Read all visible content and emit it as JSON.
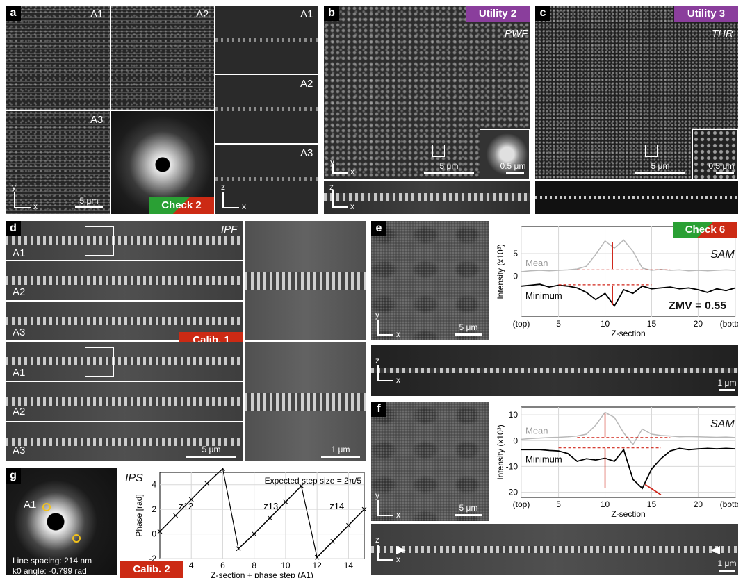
{
  "panel_a": {
    "letter": "a",
    "labels": [
      "A1",
      "A2",
      "A3"
    ],
    "scale": "5 μm",
    "axis_y": "y",
    "axis_x": "x",
    "axis_z": "z",
    "tag": "Check 2",
    "tag_colors": [
      "#2aa034",
      "#cc2a14"
    ]
  },
  "panel_b": {
    "letter": "b",
    "tag": "Utility 2",
    "method": "PWF",
    "scale_main": "5 μm",
    "scale_inset": "0.5 μm",
    "axis_y": "y",
    "axis_x": "x",
    "axis_z": "z"
  },
  "panel_c": {
    "letter": "c",
    "tag": "Utility 3",
    "method": "THR",
    "scale_main": "5 μm",
    "scale_inset": "0.5 μm"
  },
  "panel_d": {
    "letter": "d",
    "method": "IPF",
    "labels": [
      "A1",
      "A2",
      "A3"
    ],
    "tag": "Calib. 1",
    "scale_main": "5 μm",
    "scale_inset": "1 μm"
  },
  "panel_e": {
    "letter": "e",
    "tag": "Check 6",
    "tag_colors": [
      "#2aa034",
      "#cc2a14"
    ],
    "method": "SAM",
    "scale_image": "5 μm",
    "scale_xz": "1 μm",
    "zmv": "ZMV = 0.55",
    "axis_y": "y",
    "axis_x": "x",
    "axis_z": "z"
  },
  "panel_f": {
    "letter": "f",
    "method": "SAM",
    "scale_image": "5 μm",
    "scale_xz": "1 μm",
    "axis_y": "y",
    "axis_x": "x",
    "axis_z": "z"
  },
  "panel_g": {
    "letter": "g",
    "label": "A1",
    "line_spacing": "Line spacing: 214 nm",
    "k0_angle": "k0 angle: -0.799 rad",
    "tag": "Calib. 2",
    "method": "IPS"
  },
  "chart_data": [
    {
      "type": "line",
      "id": "panel-e-chart",
      "xlabel": "Z-section",
      "ylabel": "Intensity (x10³)",
      "x_ticks": [
        "(top)",
        "5",
        "10",
        "15",
        "20",
        "(bottom)"
      ],
      "x_tick_values": [
        1,
        5,
        10,
        15,
        20,
        24
      ],
      "xlim": [
        1,
        24
      ],
      "ylim": [
        -9,
        11
      ],
      "y_ticks": [
        0,
        5
      ],
      "grid": true,
      "x": [
        1,
        2,
        3,
        4,
        5,
        6,
        7,
        8,
        9,
        10,
        11,
        12,
        13,
        14,
        15,
        16,
        17,
        18,
        19,
        20,
        21,
        22,
        23,
        24
      ],
      "series": [
        {
          "name": "Mean",
          "color": "#b8b8b8",
          "values": [
            1.0,
            1.2,
            1.3,
            1.2,
            1.3,
            1.4,
            1.6,
            2.2,
            4.8,
            7.8,
            6.2,
            8.0,
            5.5,
            1.8,
            1.3,
            1.5,
            1.3,
            1.4,
            1.2,
            1.3,
            1.2,
            1.3,
            1.4,
            1.3
          ]
        },
        {
          "name": "Minimum",
          "color": "#000000",
          "values": [
            -2.2,
            -2.0,
            -1.8,
            -2.4,
            -2.0,
            -2.2,
            -2.6,
            -3.6,
            -5.2,
            -3.8,
            -6.6,
            -3.0,
            -3.8,
            -2.2,
            -2.8,
            -2.6,
            -2.4,
            -2.8,
            -2.6,
            -3.0,
            -3.6,
            -2.8,
            -3.2,
            -2.6
          ]
        }
      ]
    },
    {
      "type": "line",
      "id": "panel-f-chart",
      "xlabel": "Z-section",
      "ylabel": "Intensity (x10³)",
      "x_ticks": [
        "(top)",
        "5",
        "10",
        "15",
        "20",
        "(bottom)"
      ],
      "x_tick_values": [
        1,
        5,
        10,
        15,
        20,
        24
      ],
      "xlim": [
        1,
        24
      ],
      "ylim": [
        -22,
        13
      ],
      "y_ticks": [
        -20,
        -10,
        0,
        10
      ],
      "grid": true,
      "x": [
        1,
        2,
        3,
        4,
        5,
        6,
        7,
        8,
        9,
        10,
        11,
        12,
        13,
        14,
        15,
        16,
        17,
        18,
        19,
        20,
        21,
        22,
        23,
        24
      ],
      "series": [
        {
          "name": "Mean",
          "color": "#b8b8b8",
          "values": [
            0.5,
            0.8,
            1.0,
            1.2,
            1.3,
            1.5,
            1.8,
            2.5,
            6.0,
            11.0,
            9.0,
            3.0,
            -1.5,
            4.5,
            2.5,
            2.0,
            1.8,
            1.5,
            1.6,
            1.5,
            1.4,
            1.3,
            1.4,
            1.2
          ]
        },
        {
          "name": "Minimum",
          "color": "#000000",
          "values": [
            -3.5,
            -3.5,
            -3.5,
            -3.8,
            -4.0,
            -5.0,
            -8.0,
            -7.0,
            -7.5,
            -6.8,
            -8.0,
            -3.5,
            -15.0,
            -18.5,
            -11.0,
            -7.0,
            -4.0,
            -3.0,
            -3.5,
            -3.2,
            -3.0,
            -3.2,
            -3.0,
            -3.2
          ]
        }
      ]
    },
    {
      "type": "line",
      "id": "panel-g-chart",
      "title": "Expected step size = 2π/5",
      "xlabel": "Z-section + phase step (A1)",
      "ylabel": "Phase [rad]",
      "xlim": [
        2,
        15
      ],
      "ylim": [
        -2,
        5
      ],
      "x_ticks": [
        4,
        6,
        8,
        10,
        12,
        14
      ],
      "y_ticks": [
        -2,
        0,
        2,
        4
      ],
      "grid": true,
      "annotations": [
        "z12",
        "z13",
        "z14"
      ],
      "x": [
        2,
        3,
        4,
        5,
        6,
        7,
        8,
        9,
        10,
        11,
        12,
        13,
        14,
        15
      ],
      "series": [
        {
          "name": "",
          "color": "#000000",
          "values": [
            0.2,
            1.5,
            2.8,
            4.1,
            5.3,
            -1.2,
            0.0,
            1.3,
            2.6,
            3.9,
            -1.9,
            -0.6,
            0.7,
            2.0
          ]
        }
      ]
    }
  ]
}
